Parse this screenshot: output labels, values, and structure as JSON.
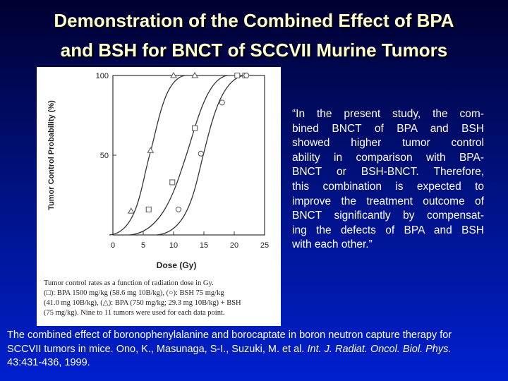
{
  "title": [
    "Demonstration of the Combined Effect of BPA",
    "and BSH for BNCT of SCCVII Murine Tumors"
  ],
  "chart_data": {
    "type": "scatter",
    "xlabel": "Dose (Gy)",
    "ylabel": "Tumor Control Probability (%)",
    "xlim": [
      0,
      25
    ],
    "xticks": [
      0,
      5,
      10,
      15,
      20,
      25
    ],
    "ylim": [
      0,
      100
    ],
    "yticks": [
      50,
      100
    ],
    "series": [
      {
        "marker": "triangle",
        "color": "#555555",
        "x": [
          3,
          6.2,
          10,
          13.5
        ],
        "values": [
          15,
          53,
          100,
          100
        ]
      },
      {
        "marker": "square",
        "color": "#555555",
        "x": [
          5.9,
          9.8,
          13.5,
          20.5,
          21.8
        ],
        "values": [
          16,
          33,
          67,
          100,
          100
        ]
      },
      {
        "marker": "circle",
        "color": "#555555",
        "x": [
          10.8,
          14.5,
          18,
          22
        ],
        "values": [
          16,
          51,
          83,
          100
        ]
      }
    ],
    "caption": [
      "Tumor control rates as a function of radiation dose in Gy.",
      "(□): BPA 1500 mg/kg (58.6 mg 10B/kg), (○): BSH 75 mg/kg",
      "(41.0 mg 10B/kg), (△): BPA (750 mg/kg; 29.3 mg 10B/kg) + BSH",
      "(75 mg/kg). Nine to 11 tumors were used for each data point."
    ]
  },
  "quote": [
    "“In the present study, the com-",
    "bined BNCT of BPA and BSH",
    "showed higher tumor control",
    "ability in comparison with BPA-",
    "BNCT or BSH-BNCT. Therefore,",
    "this combination is expected to",
    "improve the treatment outcome of",
    "BNCT significantly by compensat-",
    "ing the defects of BPA and BSH",
    "with each other.”"
  ],
  "citation": [
    "The combined effect of boronophenylalanine and borocaptate in boron neutron capture therapy for SCCVII tumors in mice. Ono, K., Masunaga, S-I., Suzuki, M. et al.",
    "Int. J. Radiat. Oncol. Biol. Phys.",
    "43:431-436, 1999."
  ]
}
